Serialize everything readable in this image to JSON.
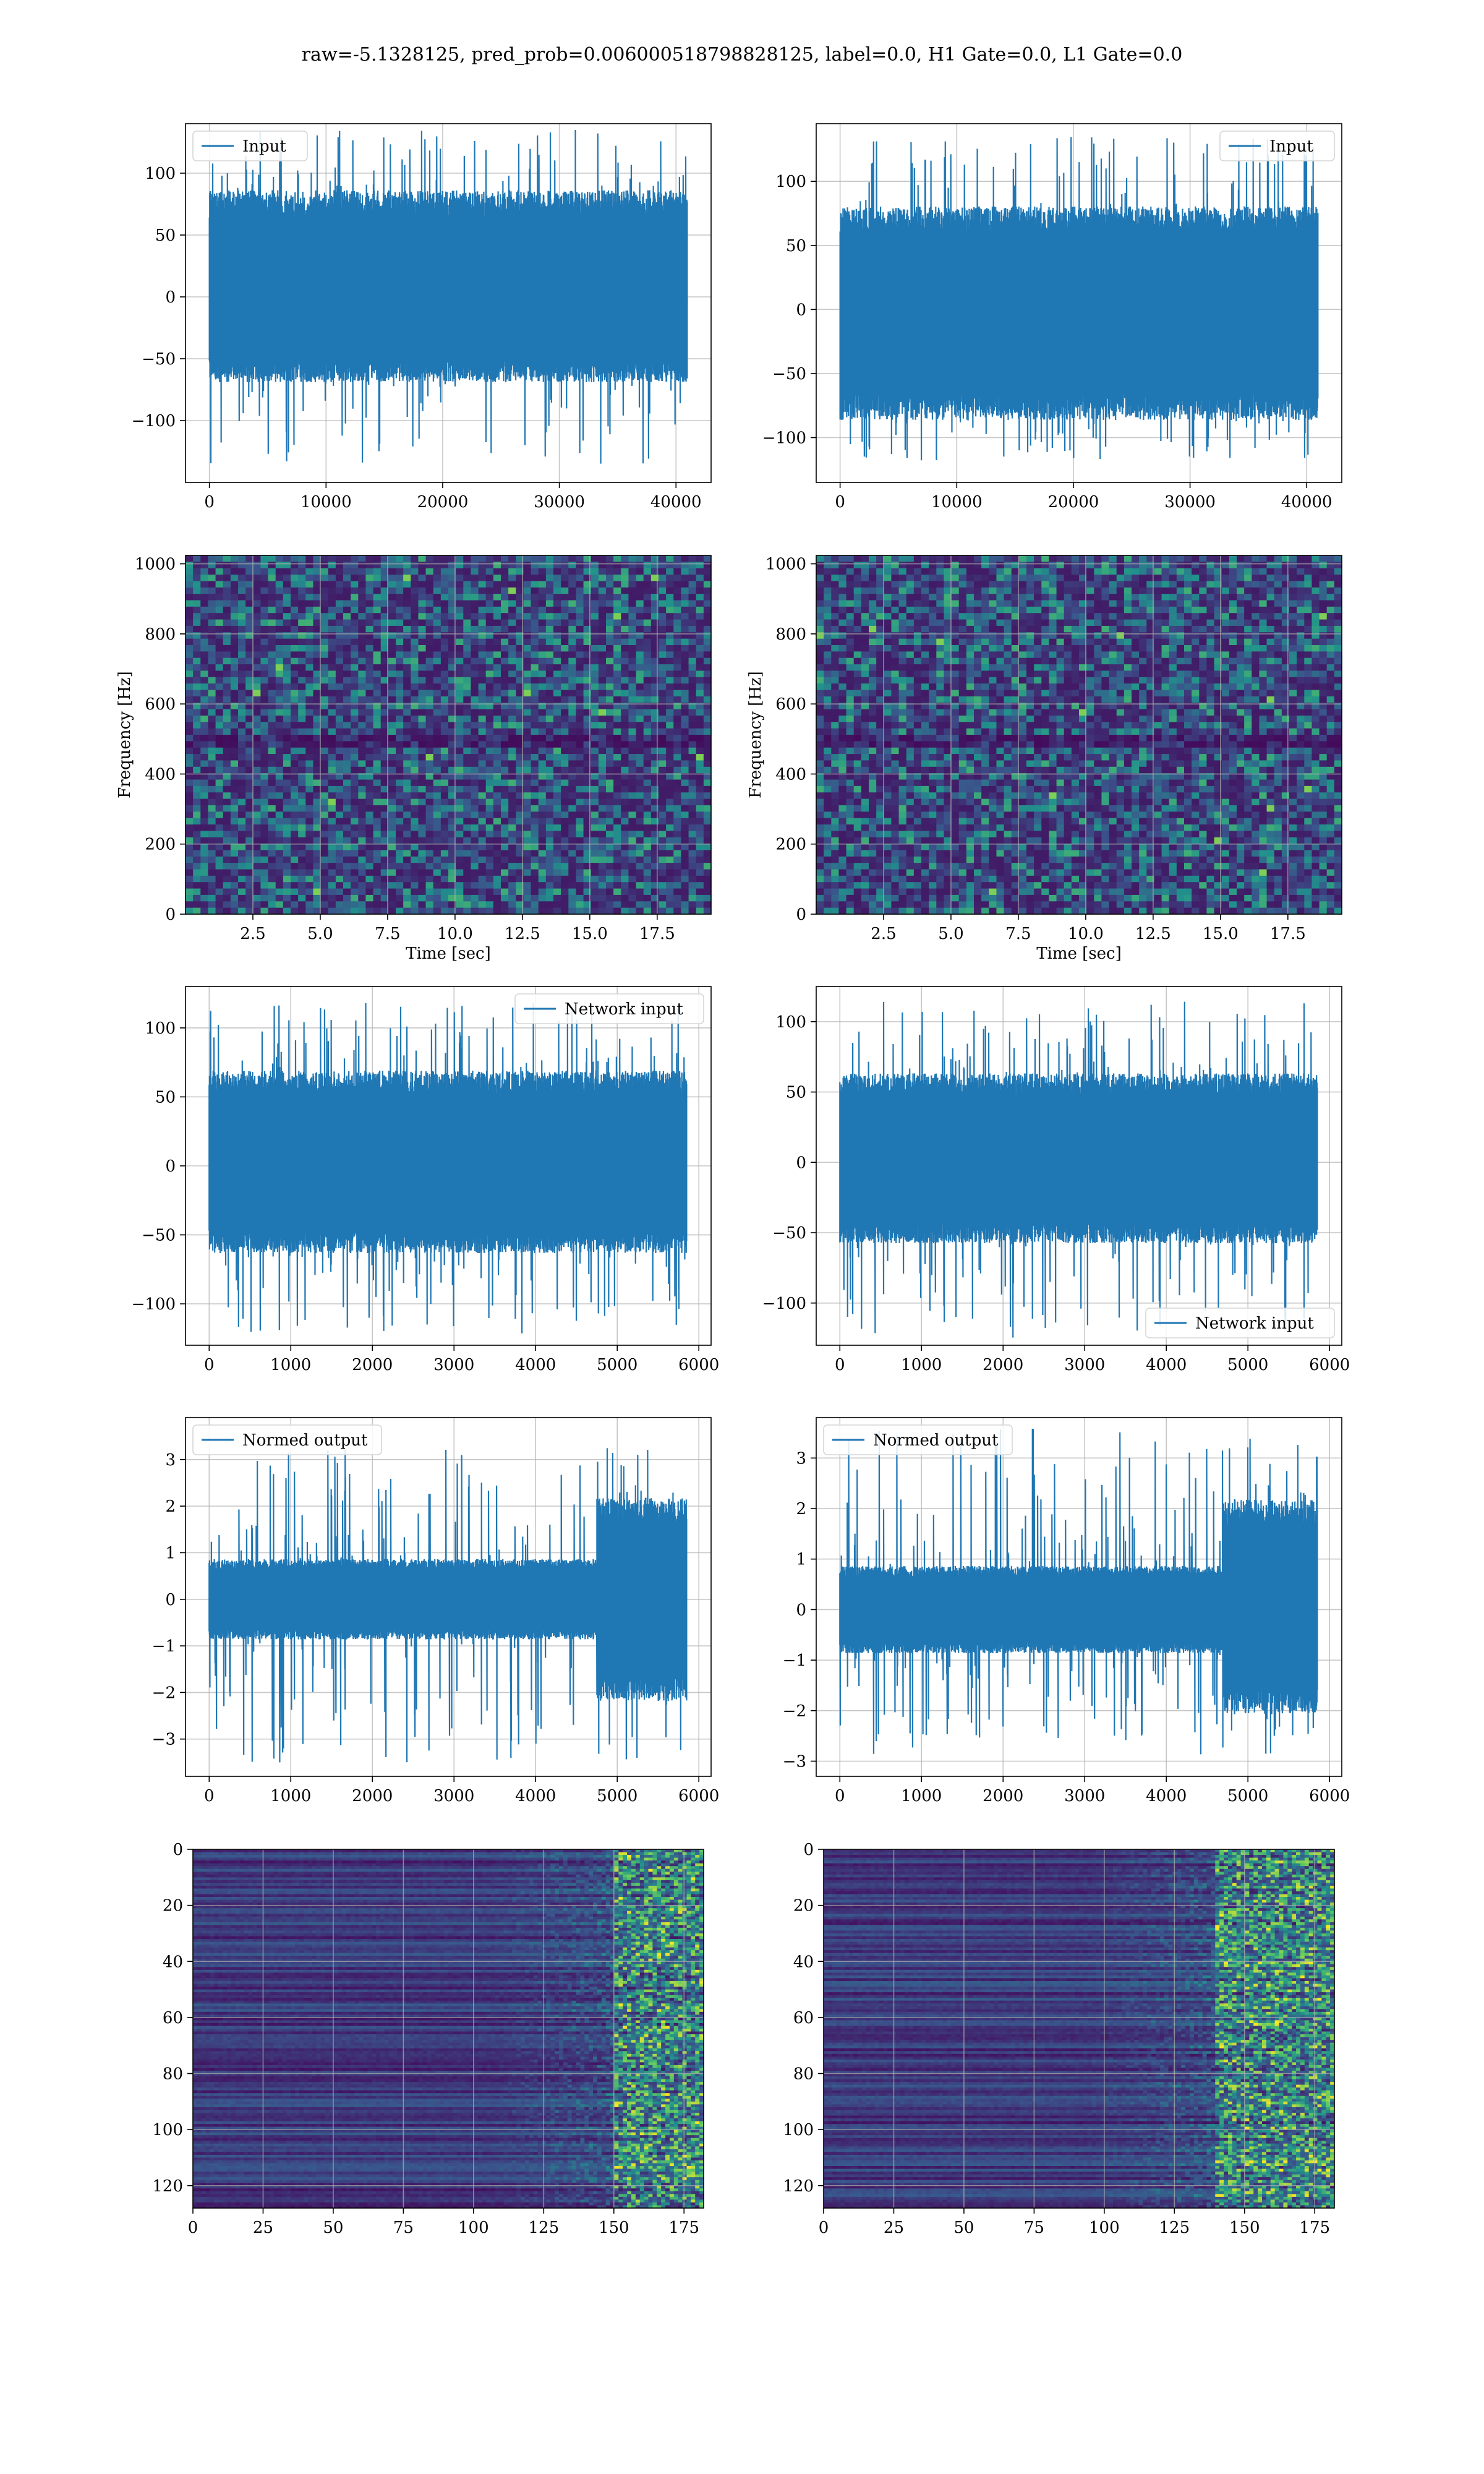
{
  "figure": {
    "suptitle": "raw=-5.1328125, pred_prob=0.006000518798828125, label=0.0, H1 Gate=0.0, L1 Gate=0.0"
  },
  "colors": {
    "line": "#1f77b4",
    "grid": "#b0b0b0",
    "viridis": [
      "#440154",
      "#3b528b",
      "#21918c",
      "#5ec962",
      "#fde725"
    ]
  },
  "chart_data": [
    {
      "id": "input-left",
      "type": "line",
      "x_range": [
        0,
        40960
      ],
      "xlim": [
        -2048,
        43008
      ],
      "ylim": [
        -150,
        140
      ],
      "xticks": [
        0,
        10000,
        20000,
        30000,
        40000
      ],
      "yticks": [
        -100,
        -50,
        0,
        50,
        100
      ],
      "legend": "Input",
      "legend_loc": "upper left",
      "envelope": {
        "lo": -60,
        "hi": 75,
        "outlier_lo": -135,
        "outlier_hi": 135
      }
    },
    {
      "id": "input-right",
      "type": "line",
      "x_range": [
        0,
        40960
      ],
      "xlim": [
        -2048,
        43008
      ],
      "ylim": [
        -135,
        145
      ],
      "xticks": [
        0,
        10000,
        20000,
        30000,
        40000
      ],
      "yticks": [
        -100,
        -50,
        0,
        50,
        100
      ],
      "legend": "Input",
      "legend_loc": "upper right",
      "envelope": {
        "lo": -75,
        "hi": 70,
        "outlier_lo": -120,
        "outlier_hi": 135
      }
    },
    {
      "id": "spec-left",
      "type": "heatmap",
      "xlim": [
        0,
        19.5
      ],
      "ylim": [
        0,
        1024
      ],
      "xticks": [
        2.5,
        5.0,
        7.5,
        10.0,
        12.5,
        15.0,
        17.5
      ],
      "yticks": [
        0,
        200,
        400,
        600,
        800,
        1000
      ],
      "xlabel": "Time [sec]",
      "ylabel": "Frequency [Hz]"
    },
    {
      "id": "spec-right",
      "type": "heatmap",
      "xlim": [
        0,
        19.5
      ],
      "ylim": [
        0,
        1024
      ],
      "xticks": [
        2.5,
        5.0,
        7.5,
        10.0,
        12.5,
        15.0,
        17.5
      ],
      "yticks": [
        0,
        200,
        400,
        600,
        800,
        1000
      ],
      "xlabel": "Time [sec]",
      "ylabel": "Frequency [Hz]"
    },
    {
      "id": "netin-left",
      "type": "line",
      "x_range": [
        0,
        5850
      ],
      "xlim": [
        -290,
        6150
      ],
      "ylim": [
        -130,
        130
      ],
      "xticks": [
        0,
        1000,
        2000,
        3000,
        4000,
        5000,
        6000
      ],
      "yticks": [
        -100,
        -50,
        0,
        50,
        100
      ],
      "legend": "Network input",
      "legend_loc": "upper right",
      "envelope": {
        "lo": -55,
        "hi": 60,
        "outlier_lo": -122,
        "outlier_hi": 120
      }
    },
    {
      "id": "netin-right",
      "type": "line",
      "x_range": [
        0,
        5850
      ],
      "xlim": [
        -290,
        6150
      ],
      "ylim": [
        -130,
        125
      ],
      "xticks": [
        0,
        1000,
        2000,
        3000,
        4000,
        5000,
        6000
      ],
      "yticks": [
        -100,
        -50,
        0,
        50,
        100
      ],
      "legend": "Network input",
      "legend_loc": "lower right",
      "envelope": {
        "lo": -50,
        "hi": 55,
        "outlier_lo": -125,
        "outlier_hi": 115
      }
    },
    {
      "id": "normed-left",
      "type": "line",
      "x_range": [
        0,
        5850
      ],
      "xlim": [
        -290,
        6150
      ],
      "ylim": [
        -3.8,
        3.9
      ],
      "xticks": [
        0,
        1000,
        2000,
        3000,
        4000,
        5000,
        6000
      ],
      "yticks": [
        -3,
        -2,
        -1,
        0,
        1,
        2,
        3
      ],
      "legend": "Normed output",
      "legend_loc": "upper left",
      "envelope": {
        "lo": -0.75,
        "hi": 0.75,
        "step_x": 4750,
        "step_lo": -1.9,
        "step_hi": 1.9,
        "outlier_lo": -3.5,
        "outlier_hi": 3.3
      }
    },
    {
      "id": "normed-right",
      "type": "line",
      "x_range": [
        0,
        5850
      ],
      "xlim": [
        -290,
        6150
      ],
      "ylim": [
        -3.3,
        3.8
      ],
      "xticks": [
        0,
        1000,
        2000,
        3000,
        4000,
        5000,
        6000
      ],
      "yticks": [
        -3,
        -2,
        -1,
        0,
        1,
        2,
        3
      ],
      "legend": "Normed output",
      "legend_loc": "upper left",
      "envelope": {
        "lo": -0.75,
        "hi": 0.75,
        "step_x": 4700,
        "step_lo": -1.8,
        "step_hi": 1.9,
        "outlier_lo": -2.9,
        "outlier_hi": 3.6
      }
    },
    {
      "id": "act-left",
      "type": "heatmap",
      "xlim": [
        0,
        182
      ],
      "ylim": [
        128,
        0
      ],
      "xticks": [
        0,
        25,
        50,
        75,
        100,
        125,
        150,
        175
      ],
      "yticks": [
        0,
        20,
        40,
        60,
        80,
        100,
        120
      ],
      "active_from": 150
    },
    {
      "id": "act-right",
      "type": "heatmap",
      "xlim": [
        0,
        182
      ],
      "ylim": [
        128,
        0
      ],
      "xticks": [
        0,
        25,
        50,
        75,
        100,
        125,
        150,
        175
      ],
      "yticks": [
        0,
        20,
        40,
        60,
        80,
        100,
        120
      ],
      "active_from": 140
    }
  ]
}
